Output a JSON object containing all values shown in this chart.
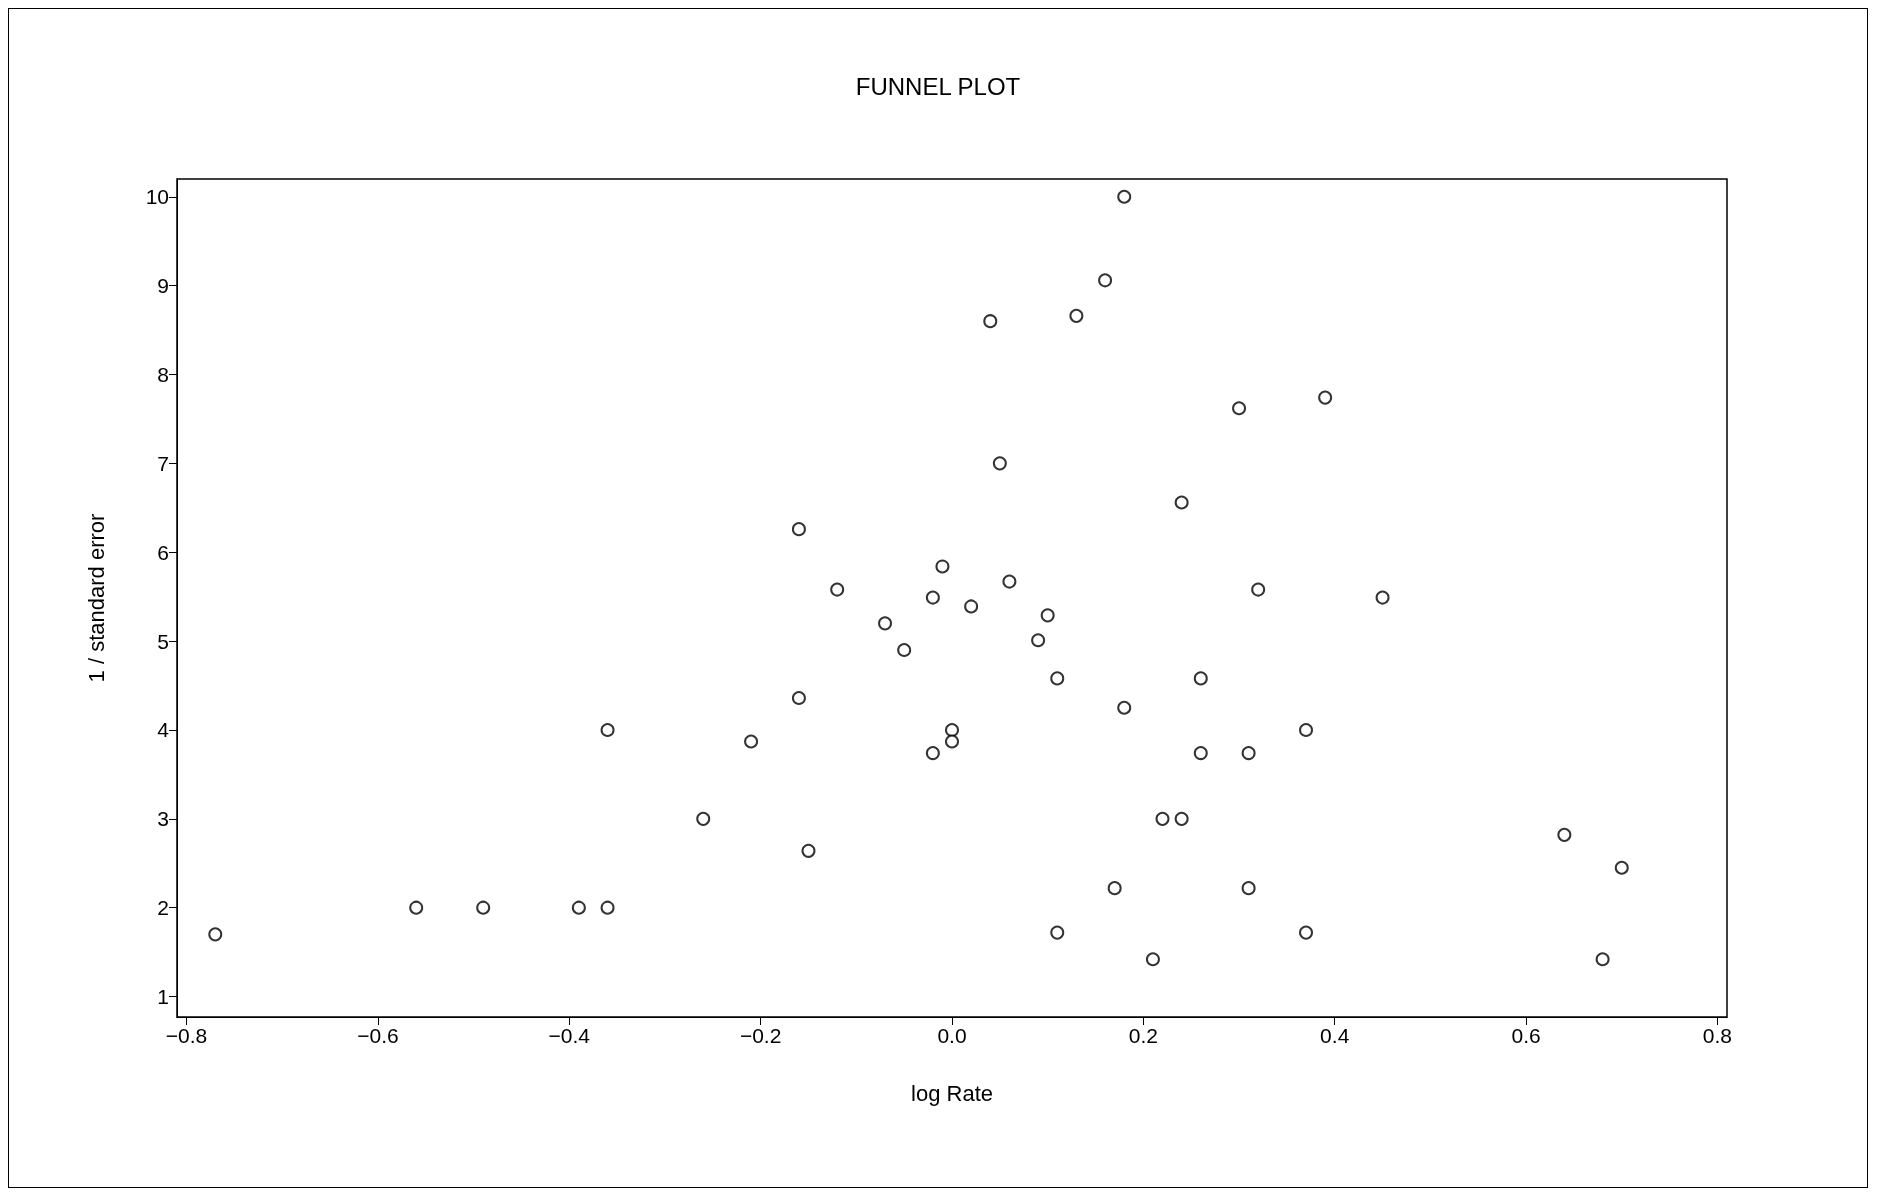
{
  "chart_data": {
    "type": "scatter",
    "title": "FUNNEL PLOT",
    "xlabel": "log Rate",
    "ylabel": "1 / standard error",
    "marker": "circle",
    "grid": false,
    "xlim": [
      -0.81,
      0.81
    ],
    "ylim": [
      0.77,
      10.2
    ],
    "xticks": [
      {
        "value": -0.8,
        "label": "−0.8"
      },
      {
        "value": -0.6,
        "label": "−0.6"
      },
      {
        "value": -0.4,
        "label": "−0.4"
      },
      {
        "value": -0.2,
        "label": "−0.2"
      },
      {
        "value": 0,
        "label": "0.0"
      },
      {
        "value": 0.2,
        "label": "0.2"
      },
      {
        "value": 0.4,
        "label": "0.4"
      },
      {
        "value": 0.6,
        "label": "0.6"
      },
      {
        "value": 0.8,
        "label": "0.8"
      }
    ],
    "yticks": [
      1,
      2,
      3,
      4,
      5,
      6,
      7,
      8,
      9,
      10
    ],
    "series": [
      {
        "color": "#000000",
        "x": [
          -0.77,
          -0.56,
          -0.49,
          -0.39,
          -0.36,
          -0.36,
          -0.26,
          -0.21,
          -0.16,
          -0.16,
          -0.15,
          -0.12,
          -0.07,
          -0.05,
          -0.02,
          -0.02,
          -0.01,
          0.0,
          0.0,
          0.02,
          0.04,
          0.05,
          0.06,
          0.09,
          0.1,
          0.11,
          0.11,
          0.13,
          0.16,
          0.17,
          0.18,
          0.18,
          0.21,
          0.22,
          0.24,
          0.24,
          0.26,
          0.26,
          0.3,
          0.31,
          0.31,
          0.32,
          0.37,
          0.37,
          0.39,
          0.45,
          0.64,
          0.68,
          0.7
        ],
        "values": [
          1.7,
          2.0,
          2.0,
          2.0,
          2.0,
          4.0,
          3.0,
          3.87,
          4.36,
          6.26,
          2.64,
          5.58,
          5.2,
          4.9,
          5.49,
          3.74,
          5.84,
          4.0,
          3.87,
          5.39,
          8.6,
          7.0,
          5.67,
          5.01,
          5.29,
          4.58,
          1.72,
          8.66,
          9.06,
          2.22,
          4.25,
          10.0,
          1.42,
          3.0,
          3.0,
          6.56,
          4.58,
          3.74,
          7.62,
          2.22,
          3.74,
          5.58,
          1.72,
          4.0,
          7.74,
          5.49,
          2.82,
          1.42,
          2.45
        ]
      }
    ]
  }
}
